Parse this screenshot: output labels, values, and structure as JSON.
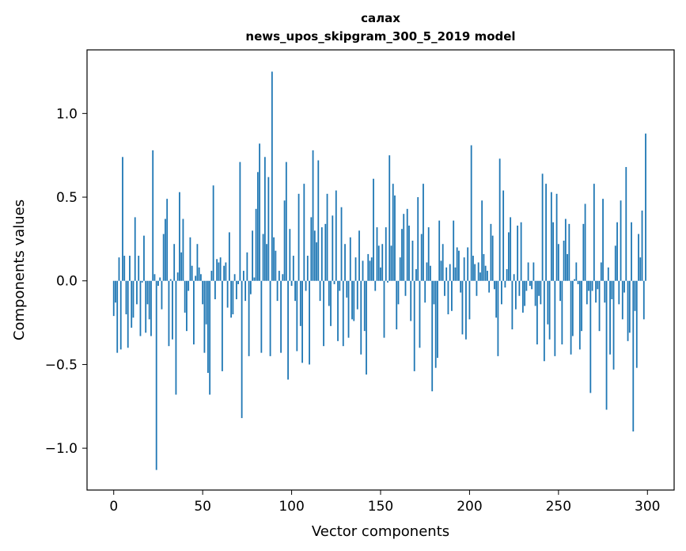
{
  "chart_data": {
    "type": "bar",
    "title": "салах",
    "subtitle": "news_upos_skipgram_300_5_2019 model",
    "xlabel": "Vector components",
    "ylabel": "Components values",
    "xlim": [
      -15,
      315
    ],
    "ylim": [
      -1.25,
      1.38
    ],
    "xticks": [
      0,
      50,
      100,
      150,
      200,
      250,
      300
    ],
    "xtick_labels": [
      "0",
      "50",
      "100",
      "150",
      "200",
      "250",
      "300"
    ],
    "yticks": [
      -1.0,
      -0.5,
      0.0,
      0.5,
      1.0
    ],
    "ytick_labels": [
      "−1.0",
      "−0.5",
      "0.0",
      "0.5",
      "1.0"
    ],
    "bar_color": "#1f77b4",
    "grid": false,
    "legend": "none",
    "values": [
      -0.21,
      -0.13,
      -0.43,
      0.14,
      -0.41,
      0.74,
      0.15,
      -0.2,
      -0.4,
      0.15,
      -0.28,
      -0.22,
      0.38,
      -0.14,
      0.15,
      -0.33,
      -0.01,
      0.27,
      -0.31,
      -0.14,
      -0.23,
      -0.33,
      0.78,
      0.04,
      -1.13,
      -0.03,
      0.02,
      -0.17,
      0.28,
      0.37,
      0.49,
      -0.39,
      0.01,
      -0.35,
      0.22,
      -0.68,
      0.05,
      0.53,
      0.17,
      0.37,
      -0.19,
      -0.3,
      -0.06,
      0.26,
      0.09,
      -0.38,
      0.03,
      0.22,
      0.08,
      0.04,
      -0.14,
      -0.43,
      -0.26,
      -0.55,
      -0.68,
      0.06,
      0.57,
      -0.11,
      0.13,
      0.11,
      0.14,
      -0.54,
      0.09,
      0.11,
      -0.16,
      0.29,
      -0.22,
      -0.2,
      0.04,
      -0.11,
      -0.02,
      0.71,
      -0.82,
      0.06,
      -0.12,
      0.17,
      -0.45,
      -0.08,
      0.3,
      0.02,
      0.43,
      0.65,
      0.82,
      -0.43,
      0.28,
      0.74,
      0.22,
      0.62,
      -0.45,
      1.25,
      0.26,
      0.18,
      -0.12,
      0.06,
      -0.43,
      0.04,
      0.48,
      0.71,
      -0.59,
      0.31,
      -0.03,
      0.15,
      -0.12,
      -0.42,
      0.52,
      -0.27,
      -0.49,
      0.58,
      -0.06,
      0.15,
      -0.5,
      0.38,
      0.78,
      0.3,
      0.23,
      0.72,
      -0.12,
      0.32,
      -0.39,
      0.34,
      0.52,
      -0.15,
      -0.27,
      0.39,
      -0.02,
      0.54,
      -0.36,
      -0.06,
      0.44,
      -0.39,
      0.22,
      -0.1,
      -0.34,
      0.26,
      -0.23,
      -0.24,
      0.14,
      -0.17,
      0.3,
      -0.44,
      0.12,
      -0.3,
      -0.56,
      0.16,
      0.12,
      0.14,
      0.61,
      -0.06,
      0.32,
      0.21,
      0.08,
      0.22,
      -0.34,
      0.32,
      -0.01,
      0.75,
      0.21,
      0.58,
      0.51,
      -0.29,
      -0.14,
      0.14,
      0.31,
      0.4,
      -0.09,
      0.43,
      0.33,
      -0.24,
      0.24,
      -0.54,
      0.07,
      0.5,
      -0.4,
      0.28,
      0.58,
      -0.13,
      0.11,
      0.32,
      0.09,
      -0.66,
      -0.14,
      -0.52,
      -0.46,
      0.36,
      0.12,
      0.22,
      -0.09,
      0.08,
      -0.2,
      0.1,
      -0.18,
      0.36,
      0.08,
      0.2,
      0.18,
      -0.07,
      -0.32,
      0.14,
      -0.35,
      0.2,
      -0.23,
      0.81,
      0.15,
      0.1,
      -0.09,
      0.11,
      0.05,
      0.48,
      0.16,
      0.09,
      0.06,
      -0.07,
      0.34,
      0.27,
      -0.05,
      -0.22,
      -0.45,
      0.73,
      -0.14,
      0.54,
      -0.04,
      0.07,
      0.29,
      0.38,
      -0.29,
      0.04,
      -0.17,
      0.33,
      -0.09,
      0.35,
      -0.19,
      -0.15,
      -0.06,
      0.11,
      -0.03,
      -0.05,
      0.11,
      -0.15,
      -0.38,
      -0.09,
      -0.14,
      0.64,
      -0.48,
      0.58,
      -0.26,
      -0.35,
      0.53,
      0.35,
      -0.45,
      0.52,
      0.22,
      -0.12,
      -0.38,
      0.24,
      0.37,
      0.16,
      0.34,
      -0.44,
      -0.33,
      0.01,
      0.11,
      -0.02,
      -0.41,
      -0.3,
      0.34,
      0.46,
      -0.14,
      -0.06,
      -0.67,
      -0.06,
      0.58,
      -0.13,
      -0.05,
      -0.3,
      0.11,
      0.49,
      -0.13,
      -0.77,
      0.08,
      -0.44,
      -0.11,
      -0.53,
      0.21,
      0.35,
      -0.14,
      0.48,
      -0.23,
      -0.07,
      0.68,
      -0.36,
      -0.31,
      0.35,
      -0.9,
      -0.18,
      -0.52,
      0.28,
      0.14,
      0.42,
      -0.23,
      0.88
    ]
  }
}
